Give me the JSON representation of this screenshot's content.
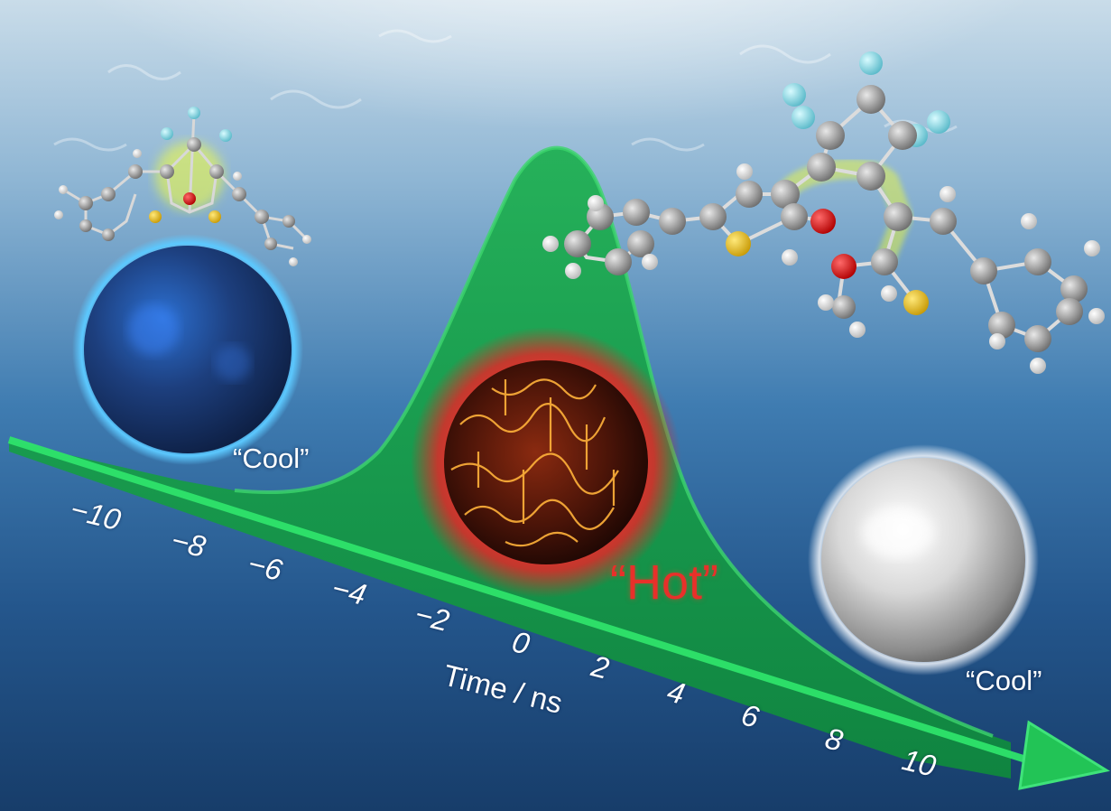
{
  "axis": {
    "title": "Time / ns",
    "ticks": [
      "−10",
      "−8",
      "−6",
      "−4",
      "−2",
      "0",
      "2",
      "4",
      "6",
      "8",
      "10"
    ]
  },
  "states": {
    "initial": "“Cool”",
    "excited": "“Hot”",
    "final": "“Cool”"
  },
  "colors": {
    "pulse": "#1fa94e",
    "hot": "#e8302a",
    "cool_sphere": "#1f4d9e",
    "final_sphere": "#e6e6e6"
  }
}
